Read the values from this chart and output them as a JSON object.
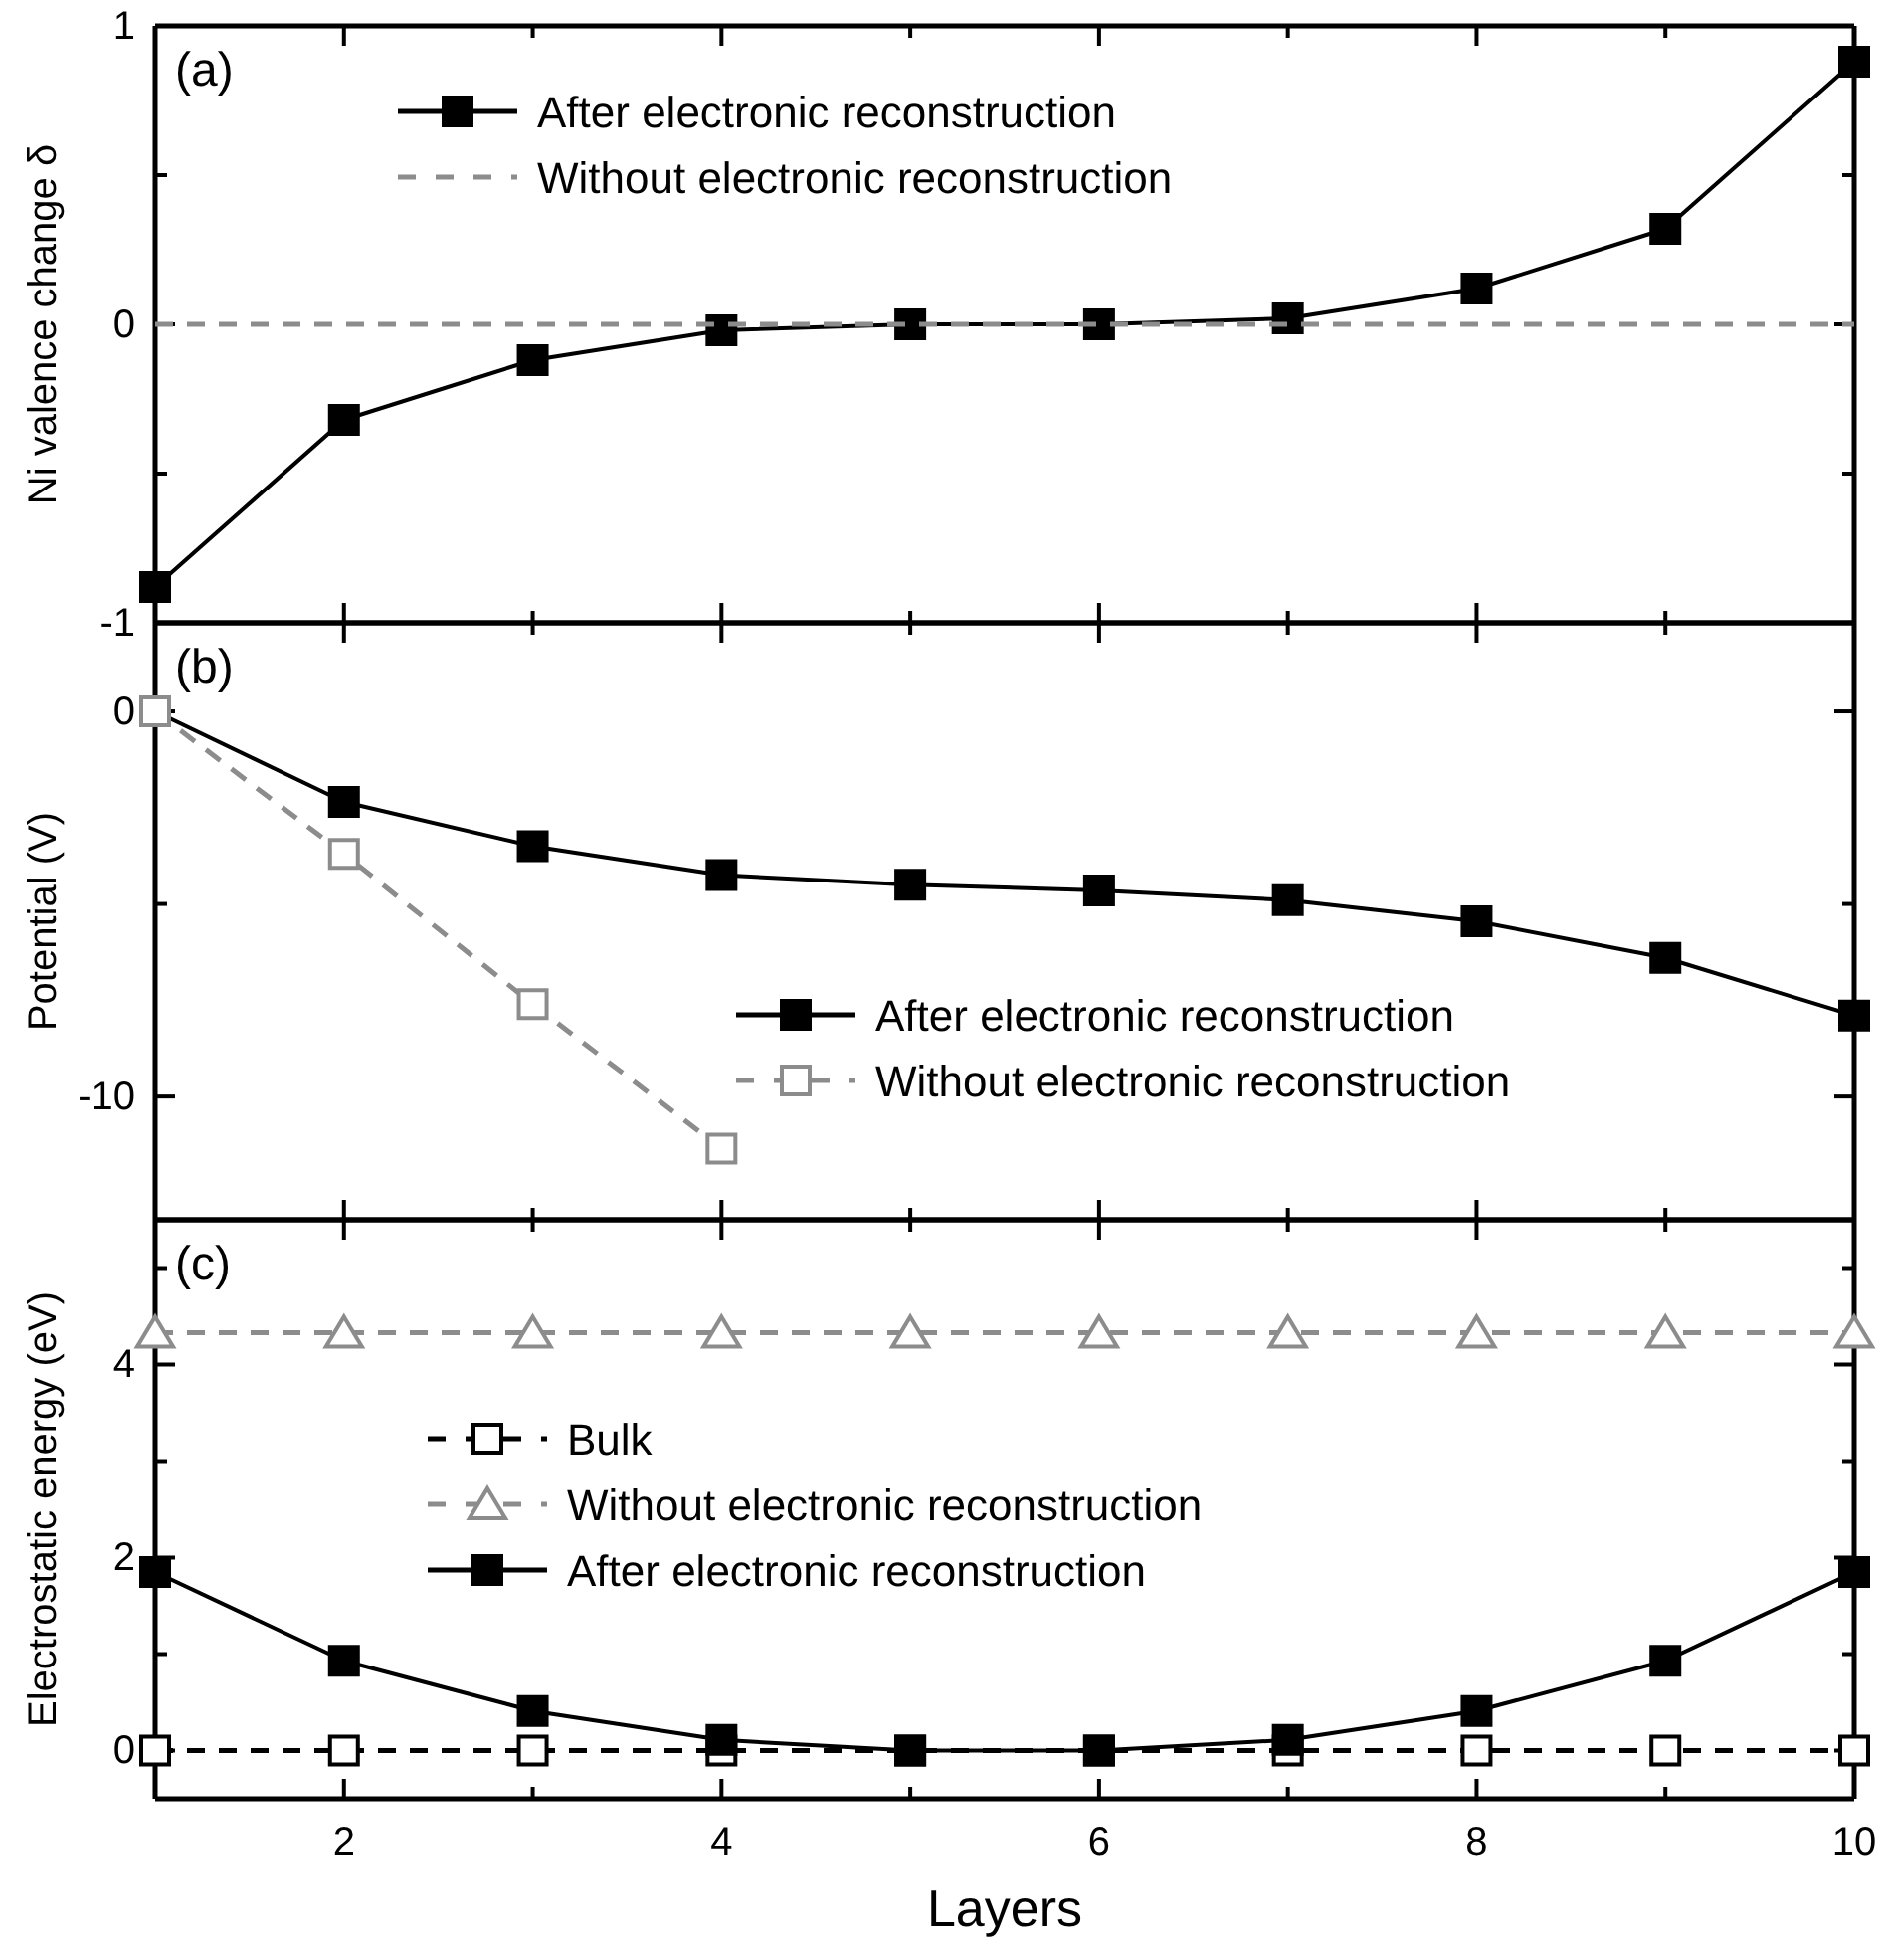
{
  "chart_data": [
    {
      "type": "line",
      "title": "(a)",
      "ylabel": "Ni valence change δ",
      "x": [
        1,
        2,
        3,
        4,
        5,
        6,
        7,
        8,
        9,
        10
      ],
      "xlim": [
        1,
        10
      ],
      "ylim": [
        -1,
        1
      ],
      "xticks": [
        {
          "value": 1,
          "label": null
        },
        2,
        {
          "value": 3,
          "label": null
        },
        4,
        {
          "value": 5,
          "label": null
        },
        6,
        {
          "value": 7,
          "label": null
        },
        8,
        {
          "value": 9,
          "label": null
        },
        10
      ],
      "yticks": [
        -1,
        {
          "value": -0.5,
          "label": null
        },
        0,
        {
          "value": 0.5,
          "label": null
        },
        1
      ],
      "tick_labels": "y",
      "legend": "top",
      "grid": false,
      "series": [
        {
          "name": "After electronic reconstruction",
          "color": "#000000",
          "marker": "square",
          "line_style": "solid",
          "values": [
            -0.88,
            -0.32,
            -0.12,
            -0.02,
            0,
            0,
            0.02,
            0.12,
            0.32,
            0.88
          ]
        },
        {
          "name": "Without electronic reconstruction",
          "color": "#8c8c8c",
          "marker": "none",
          "line_style": "dashed",
          "values": [
            0,
            0,
            0,
            0,
            0,
            0,
            0,
            0,
            0,
            0
          ]
        }
      ]
    },
    {
      "type": "line",
      "title": "(b)",
      "ylabel": "Potential (V)",
      "x": [
        1,
        2,
        3,
        4,
        5,
        6,
        7,
        8,
        9,
        10
      ],
      "xlim": [
        1,
        10
      ],
      "ylim": [
        -13.2,
        2.3
      ],
      "xticks": [
        {
          "value": 1,
          "label": null
        },
        2,
        {
          "value": 3,
          "label": null
        },
        4,
        {
          "value": 5,
          "label": null
        },
        6,
        {
          "value": 7,
          "label": null
        },
        8,
        {
          "value": 9,
          "label": null
        },
        10
      ],
      "yticks": [
        -10,
        {
          "value": -5,
          "label": null
        },
        0
      ],
      "tick_labels": "y",
      "legend": "bottom right",
      "grid": false,
      "series": [
        {
          "name": "After electronic reconstruction",
          "color": "#000000",
          "marker": "square",
          "line_style": "solid",
          "values": [
            0,
            -2.35,
            -3.5,
            -4.25,
            -4.5,
            -4.65,
            -4.9,
            -5.45,
            -6.4,
            -7.9
          ]
        },
        {
          "name": "Without electronic reconstruction",
          "color": "#8c8c8c",
          "marker": "square",
          "line_style": "dashed",
          "values": [
            0,
            -3.7,
            -7.6,
            -11.35,
            null,
            null,
            null,
            null,
            null,
            null
          ]
        }
      ]
    },
    {
      "type": "line",
      "title": "(c)",
      "xlabel": "Layers",
      "ylabel": "Electrostatic energy (eV)",
      "x": [
        1,
        2,
        3,
        4,
        5,
        6,
        7,
        8,
        9,
        10
      ],
      "xlim": [
        1,
        10
      ],
      "ylim": [
        -0.5,
        5.5
      ],
      "xticks": [
        {
          "value": 1,
          "label": null
        },
        2,
        {
          "value": 3,
          "label": null
        },
        4,
        {
          "value": 5,
          "label": null
        },
        6,
        {
          "value": 7,
          "label": null
        },
        8,
        {
          "value": 9,
          "label": null
        },
        10
      ],
      "yticks": [
        0,
        {
          "value": 1,
          "label": null
        },
        2,
        {
          "value": 3,
          "label": null
        },
        4,
        {
          "value": 5,
          "label": null
        }
      ],
      "legend": "left",
      "grid": false,
      "series": [
        {
          "name": "Bulk",
          "color": "#000000",
          "marker": "square",
          "line_style": "dashed",
          "values": [
            0,
            0,
            0,
            0,
            0,
            0,
            0,
            0,
            0,
            0
          ]
        },
        {
          "name": "Without electronic reconstruction",
          "color": "#8c8c8c",
          "marker": "triangle",
          "line_style": "dashed",
          "values": [
            4.33,
            4.33,
            4.33,
            4.33,
            4.33,
            4.33,
            4.33,
            4.33,
            4.33,
            4.33
          ]
        },
        {
          "name": "After electronic reconstruction",
          "color": "#000000",
          "marker": "square",
          "line_style": "solid",
          "values": [
            1.85,
            0.93,
            0.41,
            0.11,
            0,
            0,
            0.11,
            0.41,
            0.93,
            1.85
          ]
        }
      ]
    }
  ]
}
